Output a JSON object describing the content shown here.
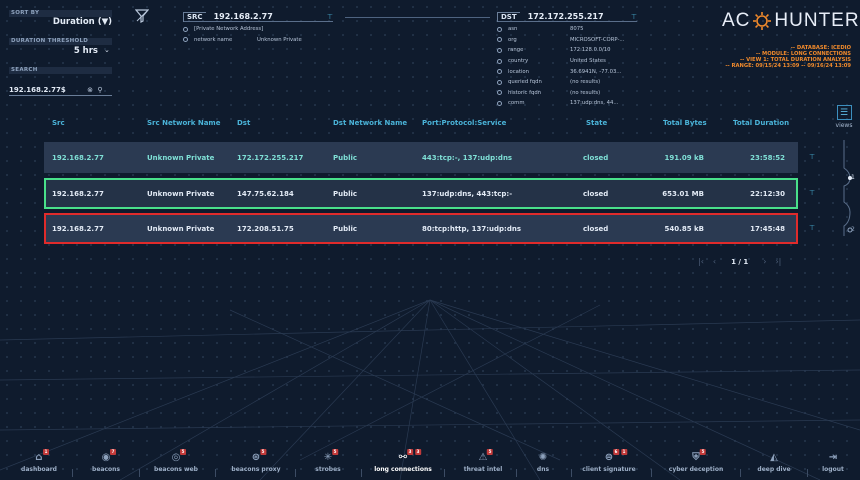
{
  "controls": {
    "sort_label": "SORT BY",
    "sort_value": "Duration  (▼)",
    "duration_label": "DURATION THRESHOLD",
    "duration_value": "5 hrs",
    "search_label": "SEARCH",
    "search_value": "192.168.2.77$"
  },
  "src": {
    "tag": "SRC",
    "ip": "192.168.2.77",
    "rows": [
      {
        "k": "[Private Network Address]",
        "v": ""
      },
      {
        "k": "network name",
        "v": "Unknown Private"
      }
    ]
  },
  "dst": {
    "tag": "DST",
    "ip": "172.172.255.217",
    "rows": [
      {
        "k": "asn",
        "v": "8075"
      },
      {
        "k": "org",
        "v": "MICROSOFT-CORP-..."
      },
      {
        "k": "range",
        "v": "172.128.0.0/10"
      },
      {
        "k": "country",
        "v": "United States"
      },
      {
        "k": "location",
        "v": "36.6941N, -77.03..."
      },
      {
        "k": "queried fqdn",
        "v": "(no results)"
      },
      {
        "k": "historic fqdn",
        "v": "(no results)"
      },
      {
        "k": "comm",
        "v": "137:udp:dns, 44..."
      }
    ]
  },
  "logo": {
    "left": "AC",
    "right": "HUNTER"
  },
  "meta": [
    "-- DATABASE: ICEDIO",
    "-- MODULE: LONG CONNECTIONS",
    "-- VIEW 1: TOTAL DURATION ANALYSIS",
    "-- RANGE: 09/15/24 13:09 -- 09/16/24 13:09"
  ],
  "views_label": "views",
  "timeline_labels": [
    "1",
    "2"
  ],
  "table": {
    "headers": [
      "Src",
      "Src Network Name",
      "Dst",
      "Dst Network Name",
      "Port:Protocol:Service",
      "State",
      "Total Bytes",
      "Total Duration"
    ],
    "rows": [
      [
        "192.168.2.77",
        "Unknown Private",
        "172.172.255.217",
        "Public",
        "443:tcp:-, 137:udp:dns",
        "closed",
        "191.09 kB",
        "23:58:52"
      ],
      [
        "192.168.2.77",
        "Unknown Private",
        "147.75.62.184",
        "Public",
        "137:udp:dns, 443:tcp:-",
        "closed",
        "653.01 MB",
        "22:12:30"
      ],
      [
        "192.168.2.77",
        "Unknown Private",
        "172.208.51.75",
        "Public",
        "80:tcp:http, 137:udp:dns",
        "closed",
        "540.85 kB",
        "17:45:48"
      ]
    ]
  },
  "pager": "1 / 1",
  "nav": [
    {
      "label": "dashboard",
      "badge": "1"
    },
    {
      "label": "beacons",
      "badge": "7"
    },
    {
      "label": "beacons web",
      "badge": "5"
    },
    {
      "label": "beacons proxy",
      "badge": "5"
    },
    {
      "label": "strobes",
      "badge": "5"
    },
    {
      "label": "long connections",
      "badge": "3",
      "badge2": "3"
    },
    {
      "label": "threat intel",
      "badge": "5"
    },
    {
      "label": "dns",
      "badge": ""
    },
    {
      "label": "client signature",
      "badge": "6",
      "badge2": "1"
    },
    {
      "label": "cyber deception",
      "badge": "5"
    },
    {
      "label": "deep dive",
      "badge": ""
    },
    {
      "label": "logout",
      "badge": ""
    }
  ],
  "colors": {
    "accent": "#4ab3d8",
    "highlight_green": "#49e08a",
    "highlight_red": "#e02b2b",
    "meta_orange": "#f08a2c"
  }
}
